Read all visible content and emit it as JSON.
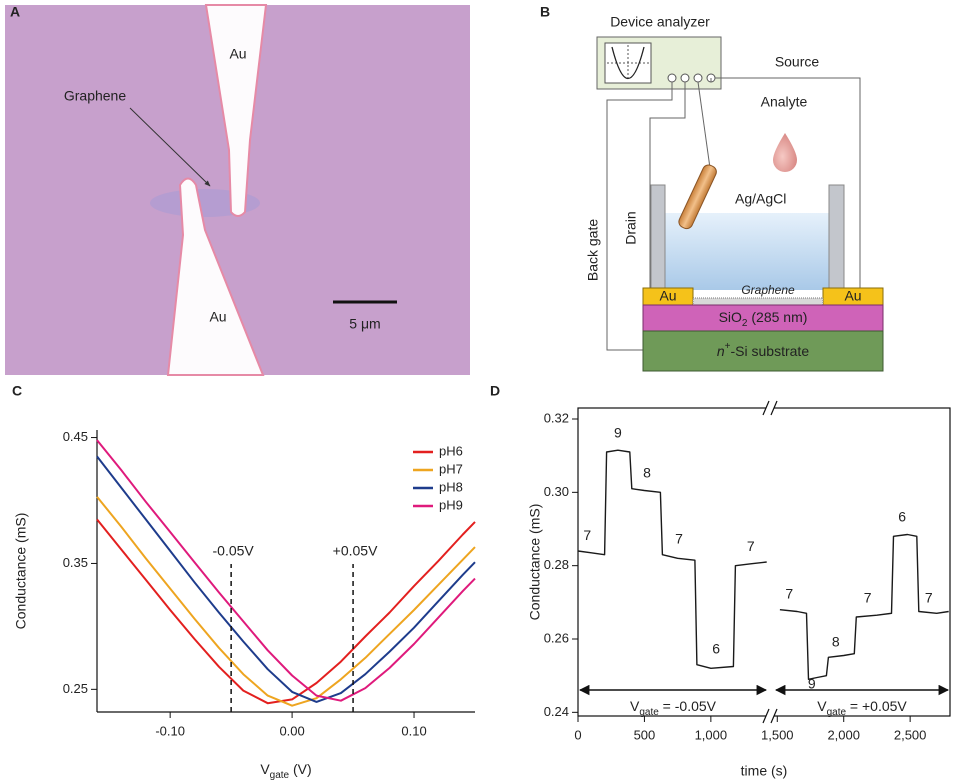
{
  "panel_a": {
    "letter": "A",
    "au_top": "Au",
    "au_bottom": "Au",
    "graphene": "Graphene",
    "scale_bar": "5 μm"
  },
  "panel_b": {
    "letter": "B",
    "device_analyzer": "Device analyzer",
    "source": "Source",
    "analyte": "Analyte",
    "electrode": "Ag/AgCl",
    "drain": "Drain",
    "back_gate": "Back gate",
    "graphene": "Graphene",
    "contacts": [
      "Au",
      "Au"
    ],
    "oxide": {
      "base": "SiO",
      "subscript": "2",
      "rest": " (285 nm)"
    },
    "substrate": {
      "base": "n",
      "superscript": "+",
      "rest": "-Si substrate"
    }
  },
  "chart_data": [
    {
      "letter": "C",
      "type": "line",
      "xlabel": {
        "base": "V",
        "subscript": "gate",
        "rest": " (V)"
      },
      "ylabel": "Conductance (mS)",
      "x": [
        -0.16,
        -0.14,
        -0.12,
        -0.1,
        -0.08,
        -0.06,
        -0.04,
        -0.02,
        0,
        0.02,
        0.04,
        0.06,
        0.08,
        0.1,
        0.12,
        0.14,
        0.15
      ],
      "series": [
        {
          "name": "pH6",
          "color": "#e3201f",
          "values": [
            0.385,
            0.361,
            0.337,
            0.313,
            0.29,
            0.268,
            0.249,
            0.239,
            0.242,
            0.255,
            0.272,
            0.292,
            0.311,
            0.332,
            0.352,
            0.373,
            0.383
          ]
        },
        {
          "name": "pH7",
          "color": "#eea520",
          "values": [
            0.403,
            0.379,
            0.354,
            0.33,
            0.306,
            0.283,
            0.262,
            0.245,
            0.237,
            0.243,
            0.258,
            0.275,
            0.294,
            0.313,
            0.333,
            0.353,
            0.363
          ]
        },
        {
          "name": "pH8",
          "color": "#1e3c8c",
          "values": [
            0.435,
            0.41,
            0.385,
            0.36,
            0.335,
            0.311,
            0.288,
            0.266,
            0.248,
            0.24,
            0.247,
            0.262,
            0.28,
            0.299,
            0.32,
            0.341,
            0.351
          ]
        },
        {
          "name": "pH9",
          "color": "#df1a7c",
          "values": [
            0.448,
            0.424,
            0.399,
            0.375,
            0.351,
            0.327,
            0.304,
            0.281,
            0.261,
            0.245,
            0.241,
            0.251,
            0.267,
            0.286,
            0.307,
            0.328,
            0.338
          ]
        }
      ],
      "xlim": [
        -0.16,
        0.15
      ],
      "ylim": [
        0.232,
        0.456
      ],
      "xticks": [
        {
          "value": -0.1,
          "label": "-0.10"
        },
        {
          "value": 0,
          "label": "0.00"
        },
        {
          "value": 0.1,
          "label": "0.10"
        }
      ],
      "yticks": [
        0.25,
        0.35,
        0.45
      ],
      "legend": "upper right",
      "annotations": [
        {
          "text": "-0.05V",
          "x": -0.05
        },
        {
          "text": "+0.05V",
          "x": 0.05
        }
      ]
    },
    {
      "letter": "D",
      "type": "line",
      "xlabel": "time (s)",
      "ylabel": "Conductance (mS)",
      "x": [
        0,
        100,
        200,
        215,
        300,
        390,
        405,
        500,
        620,
        635,
        750,
        880,
        895,
        1000,
        1170,
        1185,
        1300,
        1420,
        null,
        1520,
        1650,
        1720,
        1735,
        1800,
        1870,
        1885,
        2000,
        2080,
        2095,
        2250,
        2360,
        2375,
        2480,
        2550,
        2565,
        2700,
        2790
      ],
      "series": [
        {
          "color": "#1a1a1a",
          "values": [
            0.284,
            0.2835,
            0.283,
            0.311,
            0.3115,
            0.311,
            0.301,
            0.3005,
            0.3,
            0.283,
            0.282,
            0.2815,
            0.253,
            0.252,
            0.2525,
            0.28,
            0.2805,
            0.281,
            null,
            0.268,
            0.2675,
            0.267,
            0.249,
            0.2495,
            0.25,
            0.255,
            0.2555,
            0.256,
            0.266,
            0.2665,
            0.267,
            0.288,
            0.2885,
            0.288,
            0.2675,
            0.267,
            0.2675
          ]
        }
      ],
      "xlim": [
        0,
        2800
      ],
      "ylim": [
        0.239,
        0.323
      ],
      "xticks": [
        0,
        500,
        {
          "value": 1000,
          "label": "1,000"
        },
        {
          "value": 1500,
          "label": "1,500"
        },
        {
          "value": 2000,
          "label": "2,000"
        },
        {
          "value": 2500,
          "label": "2,500"
        }
      ],
      "yticks": [
        0.24,
        0.26,
        0.28,
        {
          "value": 0.3,
          "label": "0.30"
        },
        0.32
      ],
      "annotations": [
        {
          "text": "7",
          "x": 70,
          "y": 0.288
        },
        {
          "text": "9",
          "x": 300,
          "y": 0.316
        },
        {
          "text": "8",
          "x": 520,
          "y": 0.305
        },
        {
          "text": "7",
          "x": 760,
          "y": 0.287
        },
        {
          "text": "6",
          "x": 1040,
          "y": 0.257
        },
        {
          "text": "7",
          "x": 1300,
          "y": 0.285
        },
        {
          "text": "7",
          "x": 1590,
          "y": 0.272
        },
        {
          "text": "9",
          "x": 1760,
          "y": 0.2475
        },
        {
          "text": "8",
          "x": 1940,
          "y": 0.259
        },
        {
          "text": "7",
          "x": 2180,
          "y": 0.271
        },
        {
          "text": "6",
          "x": 2440,
          "y": 0.293
        },
        {
          "text": "7",
          "x": 2640,
          "y": 0.271
        }
      ],
      "gate_labels": [
        {
          "base": "V",
          "subscript": "gate",
          "rest": " = -0.05V"
        },
        {
          "base": "V",
          "subscript": "gate",
          "rest": " = +0.05V"
        }
      ]
    }
  ]
}
